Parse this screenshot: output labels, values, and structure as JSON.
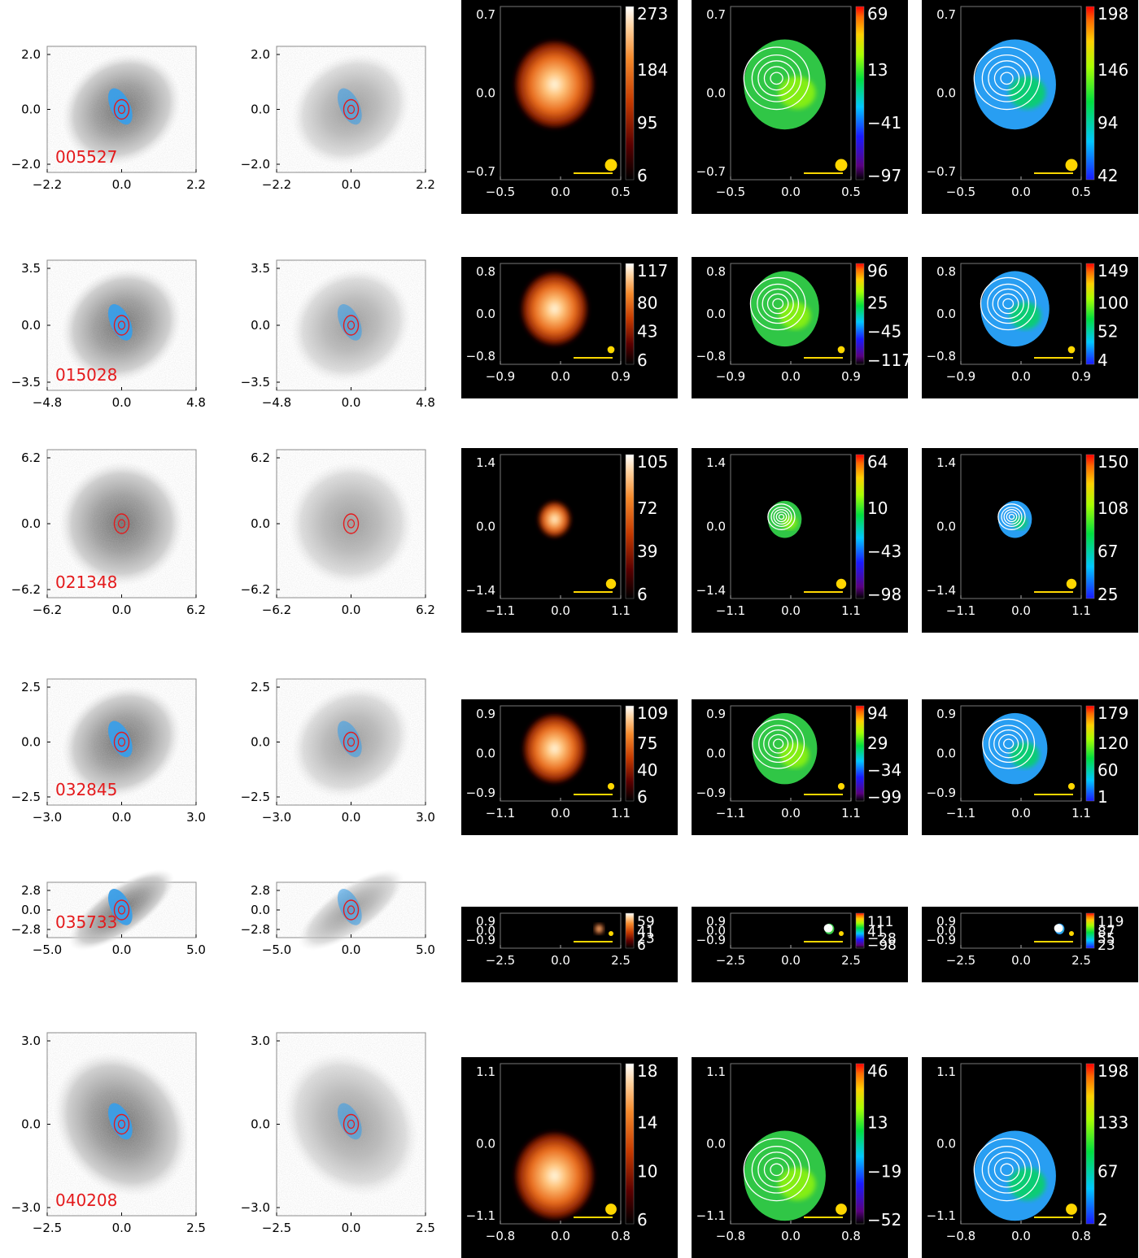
{
  "rows": [
    {
      "id": "005527",
      "hst": {
        "x": [
          "−2.2",
          "0.0",
          "2.2"
        ],
        "y": [
          "2.0",
          "0.0",
          "−2.0"
        ]
      },
      "maps": {
        "x": [
          "−0.5",
          "0.0",
          "0.5"
        ],
        "y": [
          "0.7",
          "0.0",
          "−0.7"
        ]
      },
      "flux_scale": [
        "273",
        "184",
        "95",
        "6"
      ],
      "vel_scale": [
        "69",
        "13",
        "−41",
        "−97"
      ],
      "disp_scale": [
        "198",
        "146",
        "94",
        "42"
      ]
    },
    {
      "id": "015028",
      "hst": {
        "x": [
          "−4.8",
          "0.0",
          "4.8"
        ],
        "y": [
          "3.5",
          "0.0",
          "−3.5"
        ]
      },
      "maps": {
        "x": [
          "−0.9",
          "0.0",
          "0.9"
        ],
        "y": [
          "0.8",
          "0.0",
          "−0.8"
        ]
      },
      "flux_scale": [
        "117",
        "80",
        "43",
        "6"
      ],
      "vel_scale": [
        "96",
        "25",
        "−45",
        "−117"
      ],
      "disp_scale": [
        "149",
        "100",
        "52",
        "4"
      ]
    },
    {
      "id": "021348",
      "hst": {
        "x": [
          "−6.2",
          "0.0",
          "6.2"
        ],
        "y": [
          "6.2",
          "0.0",
          "−6.2"
        ]
      },
      "maps": {
        "x": [
          "−1.1",
          "0.0",
          "1.1"
        ],
        "y": [
          "1.4",
          "0.0",
          "−1.4"
        ]
      },
      "flux_scale": [
        "105",
        "72",
        "39",
        "6"
      ],
      "vel_scale": [
        "64",
        "10",
        "−43",
        "−98"
      ],
      "disp_scale": [
        "150",
        "108",
        "67",
        "25"
      ]
    },
    {
      "id": "032845",
      "hst": {
        "x": [
          "−3.0",
          "0.0",
          "3.0"
        ],
        "y": [
          "2.5",
          "0.0",
          "−2.5"
        ]
      },
      "maps": {
        "x": [
          "−1.1",
          "0.0",
          "1.1"
        ],
        "y": [
          "0.9",
          "0.0",
          "−0.9"
        ]
      },
      "flux_scale": [
        "109",
        "75",
        "40",
        "6"
      ],
      "vel_scale": [
        "94",
        "29",
        "−34",
        "−99"
      ],
      "disp_scale": [
        "179",
        "120",
        "60",
        "1"
      ]
    },
    {
      "id": "035733",
      "hst": {
        "x": [
          "−5.0",
          "0.0",
          "5.0"
        ],
        "y": [
          "2.8",
          "0.0",
          "−2.8"
        ]
      },
      "maps": {
        "x": [
          "−2.5",
          "0.0",
          "2.5"
        ],
        "y": [
          "0.9",
          "0.0",
          "−0.9"
        ]
      },
      "flux_scale": [
        "59",
        "41",
        "23",
        "6"
      ],
      "vel_scale": [
        "111",
        "41",
        "−28",
        "−98"
      ],
      "disp_scale": [
        "119",
        "87",
        "55",
        "23"
      ]
    },
    {
      "id": "040208",
      "hst": {
        "x": [
          "−2.5",
          "0.0",
          "2.5"
        ],
        "y": [
          "3.0",
          "0.0",
          "−3.0"
        ]
      },
      "maps": {
        "x": [
          "−0.8",
          "0.0",
          "0.8"
        ],
        "y": [
          "1.1",
          "0.0",
          "−1.1"
        ]
      },
      "flux_scale": [
        "18",
        "14",
        "10",
        "6"
      ],
      "vel_scale": [
        "46",
        "13",
        "−19",
        "−52"
      ],
      "disp_scale": [
        "198",
        "133",
        "67",
        "2"
      ]
    }
  ],
  "colors": {
    "id_label": "#e41a1c",
    "contour_red": "#e41a1c",
    "emission_blue": "#3a9ee8",
    "beam": "#ffd700",
    "map_background": "#000000"
  }
}
